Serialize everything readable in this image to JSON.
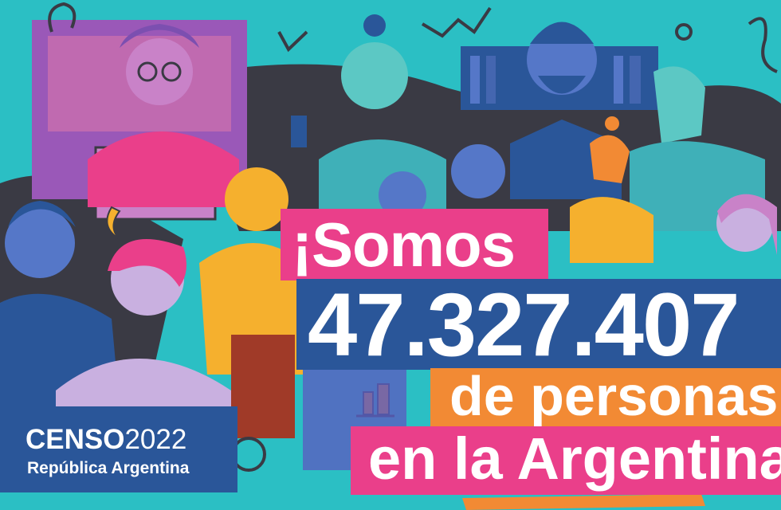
{
  "headline": {
    "line1": "¡Somos",
    "number": "47.327.407",
    "line3": "de personas",
    "line4": "en la Argentina"
  },
  "logo": {
    "censo": "CENSO",
    "year": "2022",
    "country": "República Argentina"
  },
  "colors": {
    "background": "#2bbfc4",
    "pink": "#ea3f8a",
    "blue": "#2a5699",
    "orange": "#f28a34",
    "dark": "#3a3a44"
  }
}
